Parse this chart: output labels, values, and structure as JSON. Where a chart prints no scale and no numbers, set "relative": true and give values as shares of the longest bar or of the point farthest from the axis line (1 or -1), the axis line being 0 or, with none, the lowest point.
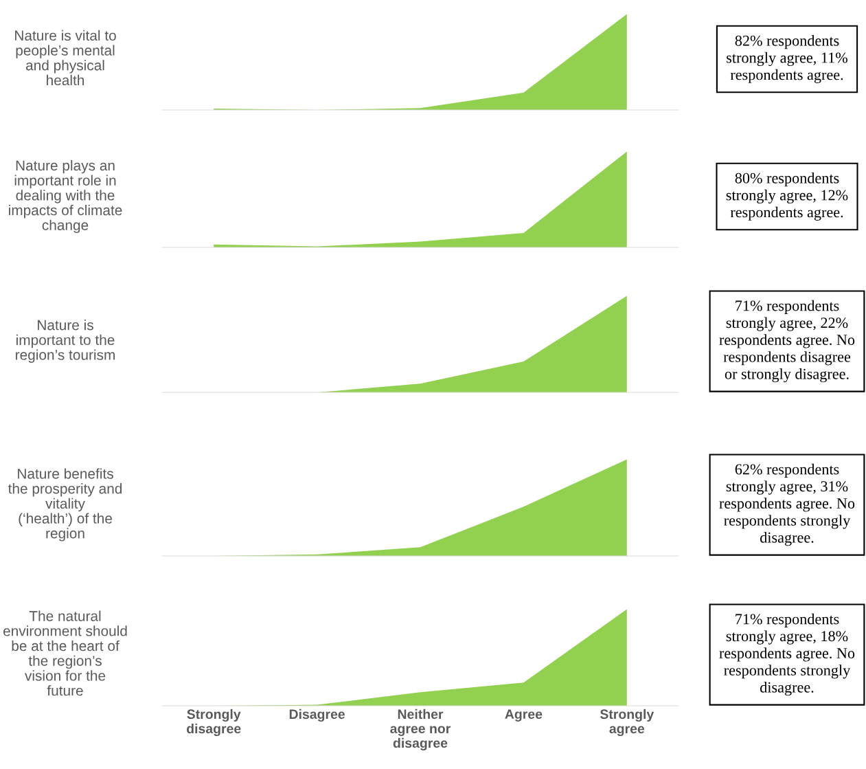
{
  "chart_data": [
    {
      "type": "area",
      "title": "Nature is vital to people’s mental and physical health",
      "categories": [
        null,
        null,
        null,
        null,
        null
      ],
      "values": [
        0.014,
        0,
        0.02,
        0.18,
        1
      ],
      "color": "#92d050",
      "relative": true,
      "tick_labels": false,
      "annotations": [
        "82% respondents strongly agree, 11% respondents agree."
      ]
    },
    {
      "type": "area",
      "title": "Nature plays an important role in dealing with the impacts of climate change",
      "categories": [
        null,
        null,
        null,
        null,
        null
      ],
      "values": [
        0.03,
        0.01,
        0.06,
        0.15,
        1
      ],
      "color": "#92d050",
      "relative": true,
      "tick_labels": false,
      "annotations": [
        "80% respondents strongly agree, 12% respondents agree."
      ]
    },
    {
      "type": "area",
      "title": "Nature is important to the region’s tourism",
      "categories": [
        null,
        null,
        null,
        null,
        null
      ],
      "values": [
        0,
        0,
        0.09,
        0.32,
        1
      ],
      "color": "#92d050",
      "relative": true,
      "tick_labels": false,
      "annotations": [
        "71% respondents strongly agree, 22% respondents agree. No respondents disagree or strongly disagree."
      ]
    },
    {
      "type": "area",
      "title": "Nature benefits the prosperity and vitality (‘health’) of the region",
      "categories": [
        null,
        null,
        null,
        null,
        null
      ],
      "values": [
        0,
        0.016,
        0.09,
        0.51,
        1
      ],
      "color": "#92d050",
      "relative": true,
      "tick_labels": false,
      "annotations": [
        "62% respondents strongly agree, 31% respondents agree. No respondents strongly disagree."
      ]
    },
    {
      "type": "area",
      "title": "The natural environment should be at the heart of the region’s vision for the future",
      "categories": [
        "Strongly disagree",
        "Disagree",
        "Neither agree nor disagree",
        "Agree",
        "Strongly agree"
      ],
      "values": [
        0,
        0.01,
        0.14,
        0.24,
        1
      ],
      "color": "#92d050",
      "relative": true,
      "tick_labels": "x",
      "annotations": [
        "71% respondents strongly agree, 18% respondents agree. No respondents strongly disagree."
      ]
    }
  ]
}
